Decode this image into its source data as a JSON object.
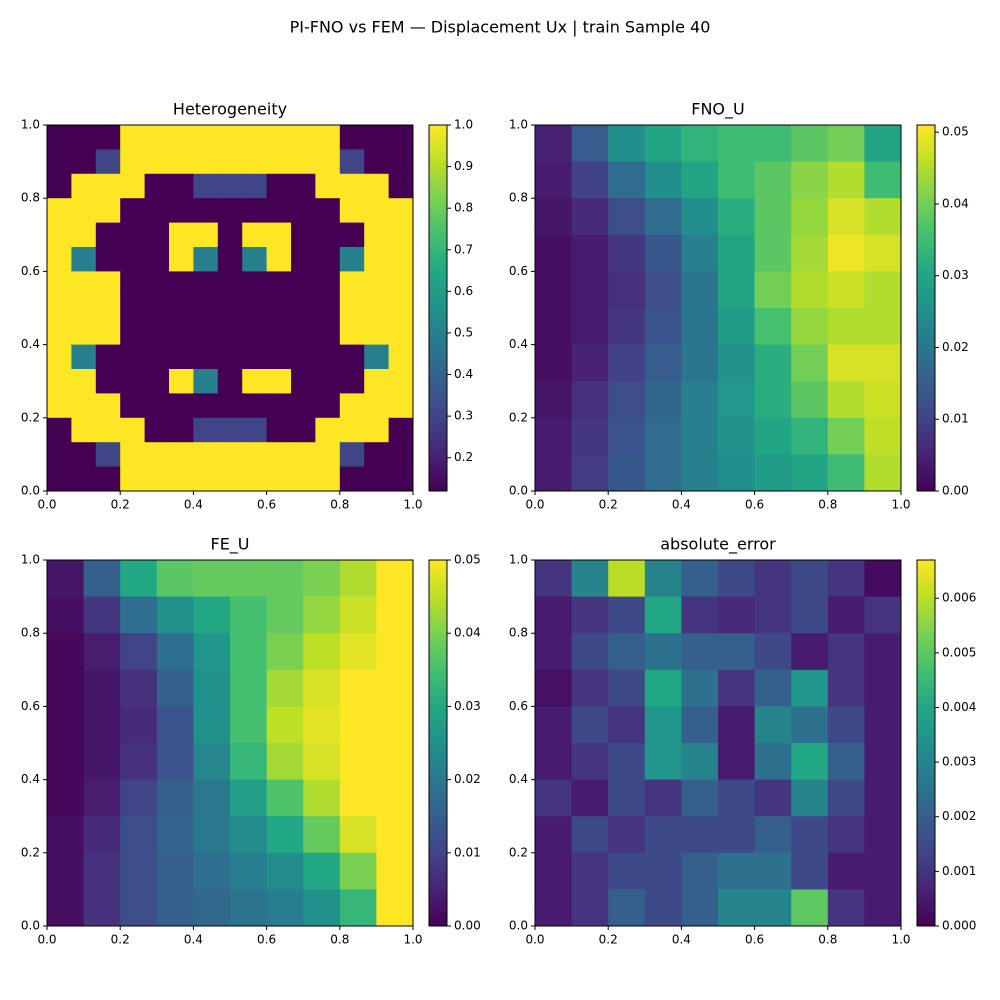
{
  "title": "PI-FNO vs FEM — Displacement Ux | train Sample 40",
  "chart_data": [
    {
      "type": "heatmap",
      "title": "Heterogeneity",
      "colormap": "viridis",
      "xlim": [
        0,
        1
      ],
      "ylim": [
        0,
        1
      ],
      "clim": [
        0.12,
        1
      ],
      "xticks": [
        {
          "value": 0,
          "label": "0.0"
        },
        0.2,
        0.4,
        0.6,
        0.8,
        {
          "value": 1,
          "label": "1.0"
        }
      ],
      "yticks": [
        {
          "value": 0,
          "label": "0.0"
        },
        0.2,
        0.4,
        0.6,
        0.8,
        {
          "value": 1,
          "label": "1.0"
        }
      ],
      "cticks": [
        0.2,
        0.3,
        0.4,
        0.5,
        0.6,
        0.7,
        0.8,
        0.9,
        {
          "value": 1,
          "label": "1.0"
        }
      ],
      "z": [
        [
          0.12,
          0.12,
          0.12,
          1,
          1,
          1,
          1,
          1,
          1,
          1,
          1,
          1,
          0.12,
          0.12,
          0.12
        ],
        [
          0.12,
          0.12,
          0.3,
          1,
          1,
          1,
          1,
          1,
          1,
          1,
          1,
          1,
          0.3,
          0.12,
          0.12
        ],
        [
          0.12,
          1,
          1,
          1,
          0.12,
          0.12,
          0.3,
          0.3,
          0.3,
          0.12,
          0.12,
          1,
          1,
          1,
          0.12
        ],
        [
          1,
          1,
          1,
          0.12,
          0.12,
          0.12,
          0.12,
          0.12,
          0.12,
          0.12,
          0.12,
          0.12,
          1,
          1,
          1
        ],
        [
          1,
          1,
          0.12,
          0.12,
          0.12,
          1,
          1,
          0.12,
          1,
          1,
          0.12,
          0.12,
          0.12,
          1,
          1
        ],
        [
          1,
          0.5,
          0.12,
          0.12,
          0.12,
          1,
          0.5,
          0.12,
          0.5,
          1,
          0.12,
          0.12,
          0.5,
          1,
          1
        ],
        [
          1,
          1,
          1,
          0.12,
          0.12,
          0.12,
          0.12,
          0.12,
          0.12,
          0.12,
          0.12,
          0.12,
          1,
          1,
          1
        ],
        [
          1,
          1,
          1,
          0.12,
          0.12,
          0.12,
          0.12,
          0.12,
          0.12,
          0.12,
          0.12,
          0.12,
          1,
          1,
          1
        ],
        [
          1,
          1,
          1,
          0.12,
          0.12,
          0.12,
          0.12,
          0.12,
          0.12,
          0.12,
          0.12,
          0.12,
          1,
          1,
          1
        ],
        [
          1,
          0.5,
          0.12,
          0.12,
          0.12,
          0.12,
          0.12,
          0.12,
          0.12,
          0.12,
          0.12,
          0.12,
          0.12,
          0.5,
          1
        ],
        [
          1,
          1,
          0.12,
          0.12,
          0.12,
          1,
          0.5,
          0.12,
          1,
          1,
          0.12,
          0.12,
          0.12,
          1,
          1
        ],
        [
          1,
          1,
          1,
          0.12,
          0.12,
          0.12,
          0.12,
          0.12,
          0.12,
          0.12,
          0.12,
          0.12,
          1,
          1,
          1
        ],
        [
          0.12,
          1,
          1,
          1,
          0.12,
          0.12,
          0.3,
          0.3,
          0.3,
          0.12,
          0.12,
          1,
          1,
          1,
          0.12
        ],
        [
          0.12,
          0.12,
          0.3,
          1,
          1,
          1,
          1,
          1,
          1,
          1,
          1,
          1,
          0.3,
          0.12,
          0.12
        ],
        [
          0.12,
          0.12,
          0.12,
          1,
          1,
          1,
          1,
          1,
          1,
          1,
          1,
          1,
          0.12,
          0.12,
          0.12
        ]
      ]
    },
    {
      "type": "heatmap",
      "title": "FNO_U",
      "colormap": "viridis",
      "xlim": [
        0,
        1
      ],
      "ylim": [
        0,
        1
      ],
      "clim": [
        0,
        0.051
      ],
      "xticks": [
        {
          "value": 0,
          "label": "0.0"
        },
        0.2,
        0.4,
        0.6,
        0.8,
        {
          "value": 1,
          "label": "1.0"
        }
      ],
      "yticks": [
        {
          "value": 0,
          "label": "0.0"
        },
        0.2,
        0.4,
        0.6,
        0.8,
        {
          "value": 1,
          "label": "1.0"
        }
      ],
      "cticks": [
        {
          "value": 0,
          "label": "0.00"
        },
        0.01,
        0.02,
        0.03,
        0.04,
        0.05
      ],
      "z": [
        [
          0.005,
          0.015,
          0.025,
          0.03,
          0.033,
          0.035,
          0.035,
          0.038,
          0.04,
          0.03
        ],
        [
          0.004,
          0.01,
          0.018,
          0.025,
          0.03,
          0.035,
          0.038,
          0.042,
          0.045,
          0.035
        ],
        [
          0.003,
          0.006,
          0.012,
          0.018,
          0.025,
          0.032,
          0.038,
          0.043,
          0.048,
          0.045
        ],
        [
          0.002,
          0.004,
          0.008,
          0.014,
          0.022,
          0.03,
          0.038,
          0.044,
          0.05,
          0.048
        ],
        [
          0.002,
          0.004,
          0.007,
          0.012,
          0.02,
          0.03,
          0.04,
          0.045,
          0.047,
          0.045
        ],
        [
          0.002,
          0.004,
          0.008,
          0.013,
          0.02,
          0.028,
          0.036,
          0.043,
          0.045,
          0.045
        ],
        [
          0.002,
          0.005,
          0.01,
          0.015,
          0.02,
          0.026,
          0.032,
          0.04,
          0.048,
          0.048
        ],
        [
          0.003,
          0.007,
          0.012,
          0.017,
          0.022,
          0.027,
          0.032,
          0.038,
          0.045,
          0.047
        ],
        [
          0.004,
          0.008,
          0.013,
          0.018,
          0.022,
          0.026,
          0.03,
          0.033,
          0.04,
          0.046
        ],
        [
          0.004,
          0.009,
          0.014,
          0.018,
          0.022,
          0.025,
          0.028,
          0.03,
          0.035,
          0.045
        ]
      ]
    },
    {
      "type": "heatmap",
      "title": "FE_U",
      "colormap": "viridis",
      "xlim": [
        0,
        1
      ],
      "ylim": [
        0,
        1
      ],
      "clim": [
        0,
        0.05
      ],
      "xticks": [
        {
          "value": 0,
          "label": "0.0"
        },
        0.2,
        0.4,
        0.6,
        0.8,
        {
          "value": 1,
          "label": "1.0"
        }
      ],
      "yticks": [
        {
          "value": 0,
          "label": "0.0"
        },
        0.2,
        0.4,
        0.6,
        0.8,
        {
          "value": 1,
          "label": "1.0"
        }
      ],
      "cticks": [
        {
          "value": 0,
          "label": "0.00"
        },
        0.01,
        0.02,
        0.03,
        0.04,
        0.05
      ],
      "z": [
        [
          0.003,
          0.015,
          0.03,
          0.037,
          0.038,
          0.038,
          0.038,
          0.04,
          0.044,
          0.05
        ],
        [
          0.002,
          0.008,
          0.018,
          0.025,
          0.03,
          0.035,
          0.038,
          0.042,
          0.046,
          0.05
        ],
        [
          0.001,
          0.004,
          0.01,
          0.018,
          0.026,
          0.035,
          0.04,
          0.045,
          0.048,
          0.05
        ],
        [
          0.001,
          0.003,
          0.007,
          0.015,
          0.025,
          0.035,
          0.043,
          0.047,
          0.05,
          0.05
        ],
        [
          0.001,
          0.003,
          0.006,
          0.013,
          0.025,
          0.035,
          0.045,
          0.048,
          0.05,
          0.05
        ],
        [
          0.001,
          0.003,
          0.007,
          0.013,
          0.023,
          0.033,
          0.043,
          0.047,
          0.05,
          0.05
        ],
        [
          0.001,
          0.004,
          0.01,
          0.015,
          0.02,
          0.028,
          0.036,
          0.044,
          0.05,
          0.05
        ],
        [
          0.002,
          0.006,
          0.012,
          0.016,
          0.02,
          0.024,
          0.03,
          0.038,
          0.047,
          0.05
        ],
        [
          0.002,
          0.007,
          0.012,
          0.015,
          0.018,
          0.021,
          0.024,
          0.03,
          0.04,
          0.05
        ],
        [
          0.002,
          0.007,
          0.012,
          0.015,
          0.017,
          0.019,
          0.021,
          0.025,
          0.033,
          0.05
        ]
      ]
    },
    {
      "type": "heatmap",
      "title": "absolute_error",
      "colormap": "viridis",
      "xlim": [
        0,
        1
      ],
      "ylim": [
        0,
        1
      ],
      "clim": [
        0,
        0.0067
      ],
      "xticks": [
        {
          "value": 0,
          "label": "0.0"
        },
        0.2,
        0.4,
        0.6,
        0.8,
        {
          "value": 1,
          "label": "1.0"
        }
      ],
      "yticks": [
        {
          "value": 0,
          "label": "0.0"
        },
        0.2,
        0.4,
        0.6,
        0.8,
        {
          "value": 1,
          "label": "1.0"
        }
      ],
      "cticks": [
        {
          "value": 0,
          "label": "0.000"
        },
        0.001,
        0.002,
        0.003,
        0.004,
        0.005,
        0.006
      ],
      "z": [
        [
          0.001,
          0.003,
          0.006,
          0.003,
          0.002,
          0.0015,
          0.001,
          0.0015,
          0.001,
          0.0002
        ],
        [
          0.0005,
          0.001,
          0.0015,
          0.004,
          0.001,
          0.0008,
          0.001,
          0.0015,
          0.0005,
          0.001
        ],
        [
          0.0005,
          0.0015,
          0.002,
          0.0025,
          0.002,
          0.002,
          0.0015,
          0.0005,
          0.001,
          0.0005
        ],
        [
          0.0003,
          0.001,
          0.0015,
          0.004,
          0.0025,
          0.001,
          0.002,
          0.0035,
          0.001,
          0.0005
        ],
        [
          0.0005,
          0.0015,
          0.001,
          0.0035,
          0.002,
          0.0005,
          0.003,
          0.0025,
          0.0015,
          0.0005
        ],
        [
          0.0005,
          0.001,
          0.0015,
          0.0035,
          0.003,
          0.0005,
          0.0025,
          0.004,
          0.002,
          0.0005
        ],
        [
          0.001,
          0.0005,
          0.0015,
          0.001,
          0.002,
          0.0015,
          0.001,
          0.003,
          0.0015,
          0.0005
        ],
        [
          0.0005,
          0.0015,
          0.001,
          0.0015,
          0.0015,
          0.0015,
          0.002,
          0.0015,
          0.001,
          0.0005
        ],
        [
          0.0005,
          0.001,
          0.0015,
          0.0015,
          0.002,
          0.0025,
          0.0025,
          0.0015,
          0.0005,
          0.0005
        ],
        [
          0.0005,
          0.001,
          0.002,
          0.0015,
          0.002,
          0.003,
          0.003,
          0.005,
          0.001,
          0.0005
        ]
      ]
    }
  ]
}
